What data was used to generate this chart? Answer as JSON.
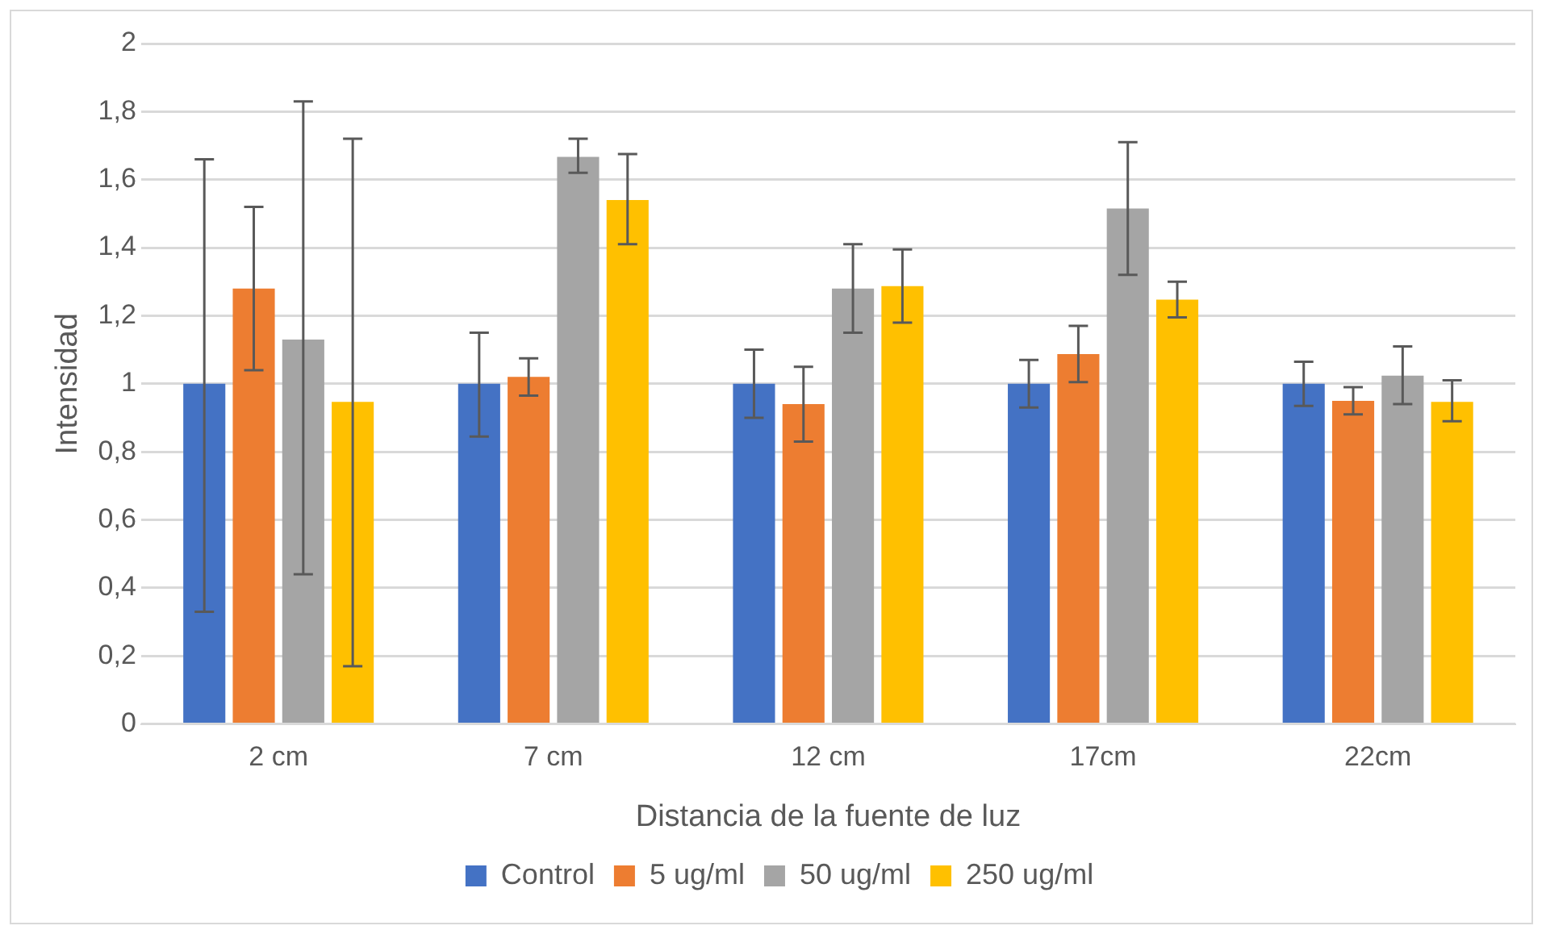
{
  "chart_data": {
    "type": "bar",
    "xlabel": "Distancia de la fuente de luz",
    "ylabel": "Intensidad",
    "categories": [
      "2 cm",
      "7 cm",
      "12 cm",
      "17cm",
      "22cm"
    ],
    "series": [
      {
        "name": "Control",
        "color": "#4472c4",
        "values": [
          1,
          1,
          1,
          1,
          1
        ],
        "errors": [
          [
            0.33,
            1.66
          ],
          [
            0.845,
            1.15
          ],
          [
            0.9,
            1.1
          ],
          [
            0.93,
            1.07
          ],
          [
            0.935,
            1.065
          ]
        ]
      },
      {
        "name": "5 ug/ml",
        "color": "#ed7d31",
        "values": [
          1.28,
          1.02,
          0.94,
          1.087,
          0.95
        ],
        "errors": [
          [
            1.04,
            1.52
          ],
          [
            0.965,
            1.075
          ],
          [
            0.83,
            1.05
          ],
          [
            1.005,
            1.17
          ],
          [
            0.91,
            0.99
          ]
        ]
      },
      {
        "name": "50 ug/ml",
        "color": "#a5a5a5",
        "values": [
          1.13,
          1.667,
          1.28,
          1.515,
          1.024
        ],
        "errors": [
          [
            0.44,
            1.83
          ],
          [
            1.62,
            1.72
          ],
          [
            1.15,
            1.41
          ],
          [
            1.32,
            1.71
          ],
          [
            0.94,
            1.11
          ]
        ]
      },
      {
        "name": "250 ug/ml",
        "color": "#ffc000",
        "values": [
          0.947,
          1.54,
          1.287,
          1.247,
          0.947
        ],
        "errors": [
          [
            0.17,
            1.72
          ],
          [
            1.41,
            1.675
          ],
          [
            1.18,
            1.395
          ],
          [
            1.195,
            1.3
          ],
          [
            0.89,
            1.01
          ]
        ]
      }
    ],
    "ylim": [
      0,
      2
    ],
    "yticks": [
      {
        "value": 0,
        "label": "0"
      },
      {
        "value": 0.2,
        "label": "0,2"
      },
      {
        "value": 0.4,
        "label": "0,4"
      },
      {
        "value": 0.6,
        "label": "0,6"
      },
      {
        "value": 0.8,
        "label": "0,8"
      },
      {
        "value": 1,
        "label": "1"
      },
      {
        "value": 1.2,
        "label": "1,2"
      },
      {
        "value": 1.4,
        "label": "1,4"
      },
      {
        "value": 1.6,
        "label": "1,6"
      },
      {
        "value": 1.8,
        "label": "1,8"
      },
      {
        "value": 2,
        "label": "2"
      }
    ],
    "grid": "y",
    "legend": "bottom"
  }
}
